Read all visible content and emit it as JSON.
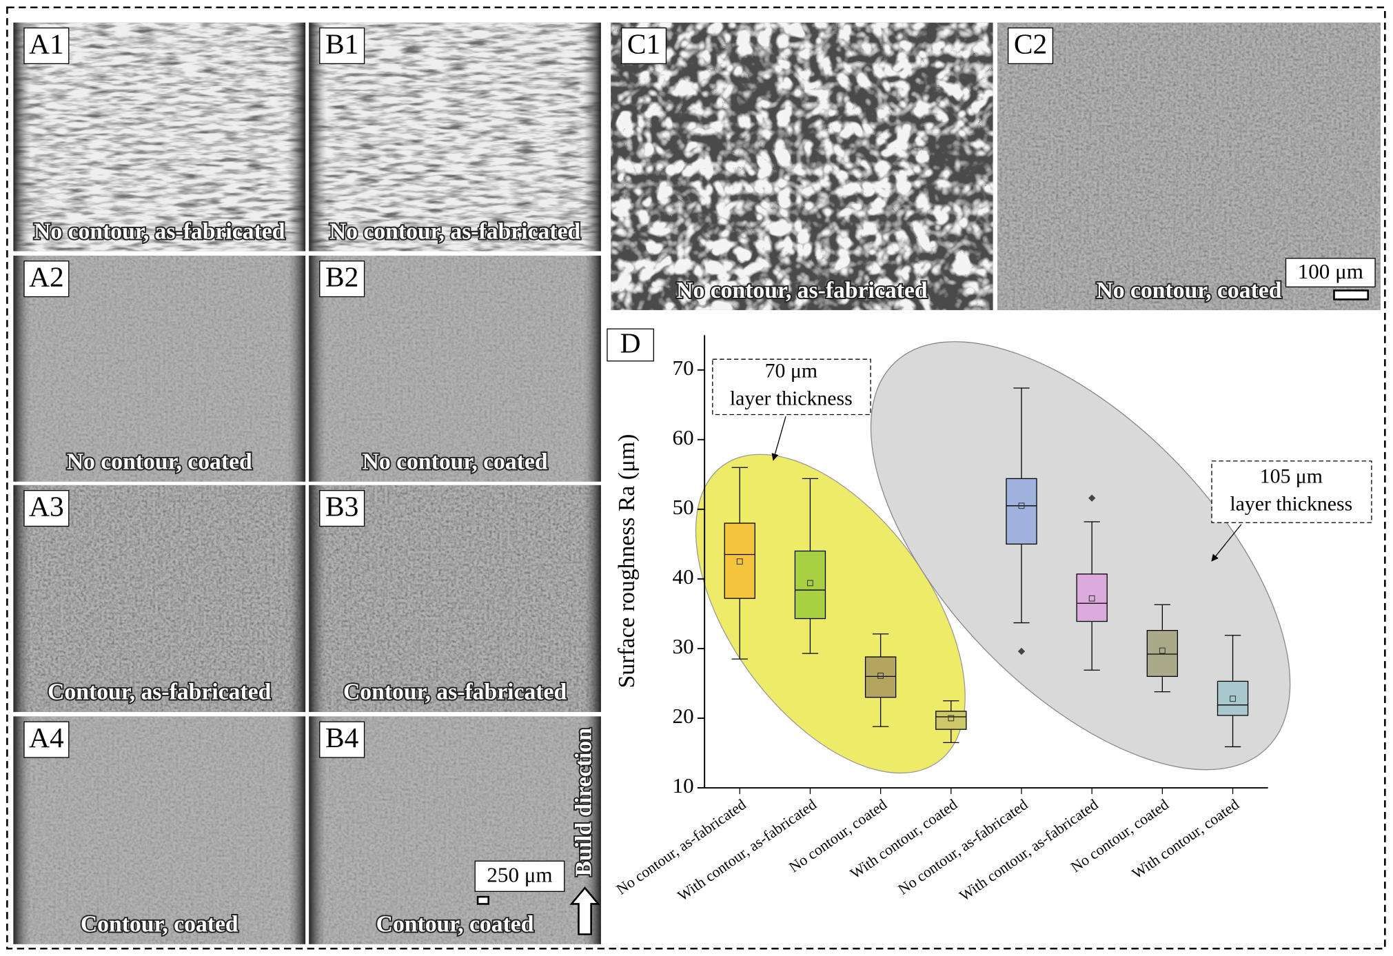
{
  "panels": [
    {
      "label": "A1",
      "caption": "No contour, as-fabricated"
    },
    {
      "label": "B1",
      "caption": "No contour, as-fabricated"
    },
    {
      "label": "A2",
      "caption": "No contour, coated"
    },
    {
      "label": "B2",
      "caption": "No contour, coated"
    },
    {
      "label": "A3",
      "caption": "Contour, as-fabricated"
    },
    {
      "label": "B3",
      "caption": "Contour, as-fabricated"
    },
    {
      "label": "A4",
      "caption": "Contour, coated"
    },
    {
      "label": "B4",
      "caption": "Contour, coated"
    },
    {
      "label": "C1",
      "caption": "No contour, as-fabricated"
    },
    {
      "label": "C2",
      "caption": "No contour, coated"
    }
  ],
  "scale_bars": [
    "250 μm",
    "100 μm"
  ],
  "build_direction": "Build direction",
  "chart_data": {
    "type": "box",
    "panel_label": "D",
    "y_label": "Surface roughness Ra (μm)",
    "categories": [
      "No contour, as-fabricated",
      "With contour, as-fabricated",
      "No contour, coated",
      "With contour, coated",
      "No contour, as-fabricated",
      "With contour, as-fabricated",
      "No contour, coated",
      "With contour, coated"
    ],
    "boxes": [
      {
        "min": 28.5,
        "q1": 37.2,
        "median": 43.5,
        "q3": 48.0,
        "max": 56.0,
        "mean": 42.5,
        "outliers": [],
        "color": "#f3c43c"
      },
      {
        "min": 29.3,
        "q1": 34.3,
        "median": 38.4,
        "q3": 44.0,
        "max": 54.4,
        "mean": 39.4,
        "outliers": [],
        "color": "#a9d043"
      },
      {
        "min": 18.8,
        "q1": 23.0,
        "median": 26.0,
        "q3": 28.8,
        "max": 32.1,
        "mean": 26.1,
        "outliers": [],
        "color": "#b3a45f"
      },
      {
        "min": 16.5,
        "q1": 18.4,
        "median": 20.2,
        "q3": 21.0,
        "max": 22.5,
        "mean": 20.0,
        "outliers": [],
        "color": "#cfc86a"
      },
      {
        "min": 33.7,
        "q1": 45.0,
        "median": 50.5,
        "q3": 54.4,
        "max": 67.4,
        "mean": 50.5,
        "outliers": [
          29.6
        ],
        "color": "#9db2dc"
      },
      {
        "min": 26.9,
        "q1": 33.9,
        "median": 36.5,
        "q3": 40.7,
        "max": 48.2,
        "mean": 37.2,
        "outliers": [
          51.6
        ],
        "color": "#dcaadc"
      },
      {
        "min": 23.8,
        "q1": 26.0,
        "median": 29.2,
        "q3": 32.6,
        "max": 36.3,
        "mean": 29.7,
        "outliers": [],
        "color": "#aaa98a"
      },
      {
        "min": 15.9,
        "q1": 20.4,
        "median": 21.9,
        "q3": 25.3,
        "max": 31.9,
        "mean": 22.8,
        "outliers": [],
        "color": "#a8c8cd"
      }
    ],
    "ylim": [
      10,
      75
    ],
    "yticks": [
      10,
      20,
      30,
      40,
      50,
      60,
      70
    ],
    "annotations": [
      [
        "70 μm",
        "layer thickness"
      ],
      [
        "105 μm",
        "layer thickness"
      ]
    ]
  }
}
